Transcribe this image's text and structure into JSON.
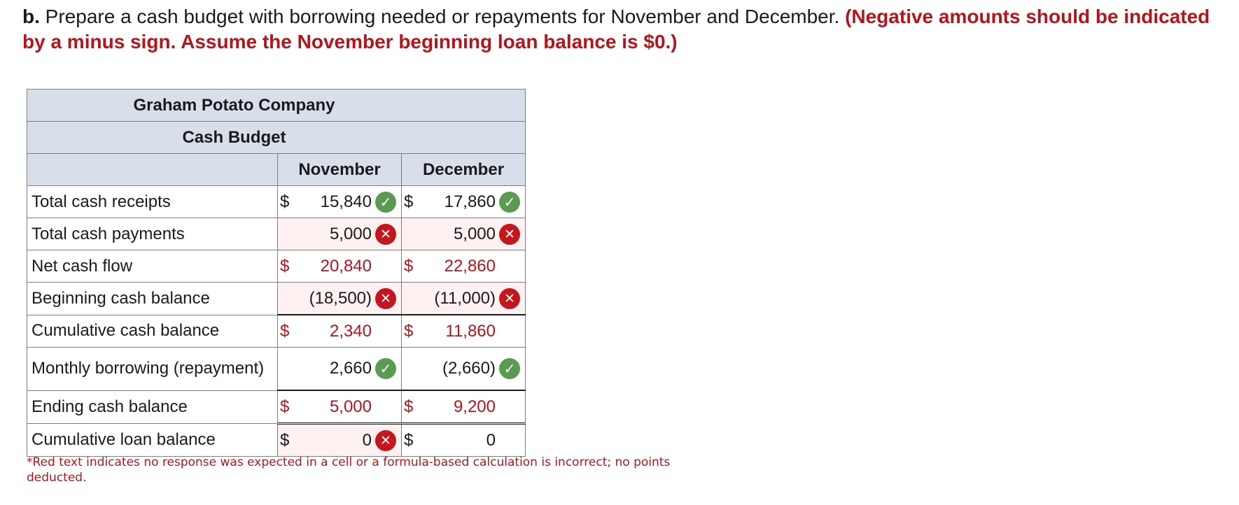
{
  "instructions": {
    "part": "b.",
    "text": " Prepare a cash budget with borrowing needed or repayments for November and December. ",
    "note": "(Negative amounts should be indicated by a minus sign. Assume the November beginning loan balance is $0.)"
  },
  "table": {
    "company": "Graham Potato Company",
    "title": "Cash Budget",
    "columns": [
      "November",
      "December"
    ],
    "rows": [
      {
        "label": "Total cash receipts",
        "nov": {
          "dollar": "$",
          "value": "15,840",
          "status": "check-icon"
        },
        "dec": {
          "dollar": "$",
          "value": "17,860",
          "status": "check-icon"
        }
      },
      {
        "label": "Total cash payments",
        "nov": {
          "dollar": "",
          "value": "5,000",
          "status": "x-icon"
        },
        "dec": {
          "dollar": "",
          "value": "5,000",
          "status": "x-icon"
        }
      },
      {
        "label": "Net cash flow",
        "nov": {
          "dollar": "$",
          "value": "20,840",
          "status": ""
        },
        "dec": {
          "dollar": "$",
          "value": "22,860",
          "status": ""
        }
      },
      {
        "label": "Beginning cash balance",
        "nov": {
          "dollar": "",
          "value": "(18,500)",
          "status": "x-icon"
        },
        "dec": {
          "dollar": "",
          "value": "(11,000)",
          "status": "x-icon"
        }
      },
      {
        "label": "Cumulative cash balance",
        "nov": {
          "dollar": "$",
          "value": "2,340",
          "status": ""
        },
        "dec": {
          "dollar": "$",
          "value": "11,860",
          "status": ""
        }
      },
      {
        "label": "Monthly borrowing (repayment)",
        "nov": {
          "dollar": "",
          "value": "2,660",
          "status": "check-icon"
        },
        "dec": {
          "dollar": "",
          "value": "(2,660)",
          "status": "check-icon"
        }
      },
      {
        "label": "Ending cash balance",
        "nov": {
          "dollar": "$",
          "value": "5,000",
          "status": ""
        },
        "dec": {
          "dollar": "$",
          "value": "9,200",
          "status": ""
        }
      },
      {
        "label": "Cumulative loan balance",
        "nov": {
          "dollar": "$",
          "value": "0",
          "status": "x-icon"
        },
        "dec": {
          "dollar": "$",
          "value": "0",
          "status": ""
        }
      }
    ]
  },
  "footnote": "*Red text indicates no response was expected in a cell or a formula-based calculation is incorrect; no points deducted.",
  "colors": {
    "header_bg": "#d8dfeb",
    "error_red": "#b5141b",
    "check_green": "#5a9a52",
    "input_pink": "#fdf1f1"
  }
}
